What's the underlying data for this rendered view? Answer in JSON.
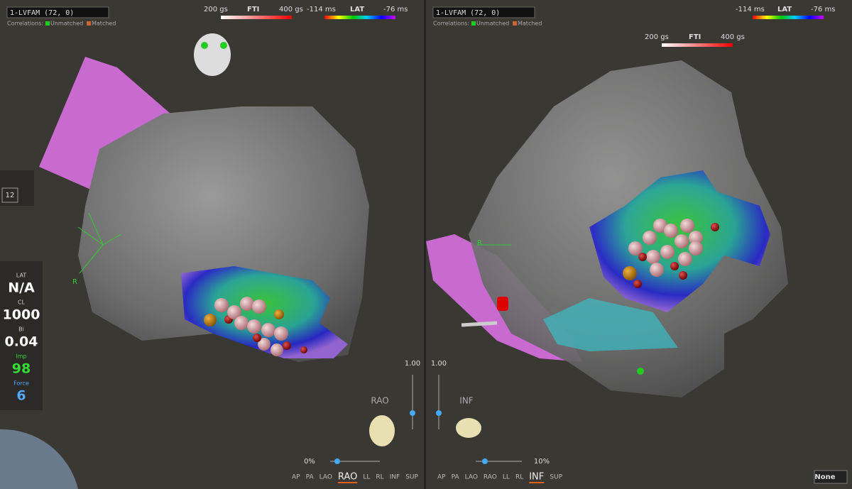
{
  "left_view": {
    "map_selector": "1-LVFAM (72, 0)",
    "correlations": {
      "label": "Correlations:",
      "unmatched": "Unmatched",
      "matched": "Matched"
    },
    "fti_legend": {
      "min": "200 gs",
      "title": "FTI",
      "max": "400 gs"
    },
    "lat_legend": {
      "min": "-114 ms",
      "title": "LAT",
      "max": "-76 ms"
    },
    "axis_label": "R",
    "zoom_value": "1.00",
    "orientation": "RAO",
    "transparency": "0%",
    "views": [
      "AP",
      "PA",
      "LAO",
      "RAO",
      "LL",
      "RL",
      "INF",
      "SUP"
    ],
    "active_view": "RAO"
  },
  "info_panel": {
    "channel": "12",
    "fields": [
      {
        "label": "LAT",
        "value": "N/A"
      },
      {
        "label": "CL",
        "value": "1000"
      },
      {
        "label": "Bi",
        "value": "0.04"
      },
      {
        "label": "Imp",
        "value": "98"
      },
      {
        "label": "Force",
        "value": "6"
      }
    ]
  },
  "right_view": {
    "map_selector": "1-LVFAM (72, 0)",
    "correlations": {
      "label": "Correlations:",
      "unmatched": "Unmatched",
      "matched": "Matched"
    },
    "lat_legend": {
      "min": "-114 ms",
      "title": "LAT",
      "max": "-76 ms"
    },
    "fti_legend": {
      "min": "200 gs",
      "title": "FTI",
      "max": "400 gs"
    },
    "axis_label": "R",
    "zoom_value": "1.00",
    "orientation": "INF",
    "transparency": "10%",
    "views": [
      "AP",
      "PA",
      "LAO",
      "RAO",
      "LL",
      "RL",
      "INF",
      "SUP"
    ],
    "active_view": "INF"
  },
  "footer": {
    "selector": "None"
  }
}
